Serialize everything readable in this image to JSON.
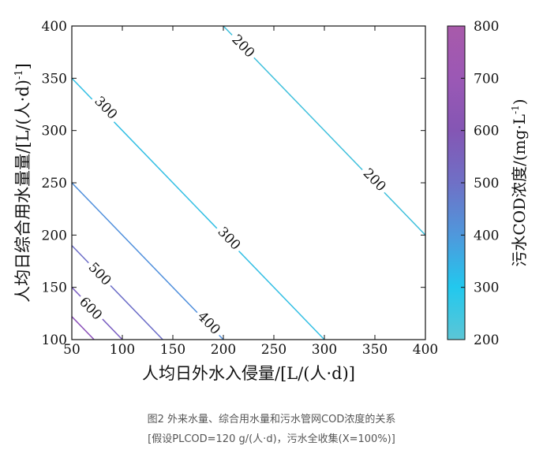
{
  "caption": {
    "line1": "图2 外来水量、综合用水量和污水管网COD浓度的关系",
    "line2": "[假设PLCOD=120 g/(人·d)，污水全收集(X=100%)]"
  },
  "chart_data": {
    "type": "contour",
    "title": "",
    "xlabel": "人均日外水入侵量/[L/(人·d)]",
    "ylabel": "人均日综合用水量量/[L/(人·d)",
    "ylabel_sup": "-1",
    "ylabel_tail": "]",
    "xlim": [
      50,
      400
    ],
    "ylim": [
      100,
      400
    ],
    "xticks": [
      50,
      100,
      150,
      200,
      250,
      300,
      350,
      400
    ],
    "yticks": [
      100,
      150,
      200,
      250,
      300,
      350,
      400
    ],
    "grid": false,
    "colorbar": {
      "label": "污水COD浓度/(mg·L",
      "label_sup": "-1",
      "label_tail": ")",
      "range": [
        200,
        800
      ],
      "ticks": [
        200,
        300,
        400,
        500,
        600,
        700,
        800
      ],
      "colors": [
        "#5cc6d6",
        "#22c8ee",
        "#4f98dc",
        "#6f70c6",
        "#8456b4",
        "#9b58b5",
        "#a85aaa"
      ]
    },
    "contours": [
      {
        "level": 200,
        "color": "#3fc0dc",
        "points": [
          [
            200,
            400
          ],
          [
            400,
            200
          ]
        ],
        "labels": [
          {
            "x": 220,
            "y": 381,
            "text": "200"
          },
          {
            "x": 350,
            "y": 253,
            "text": "200"
          }
        ]
      },
      {
        "level": 300,
        "color": "#33bfe4",
        "points": [
          [
            50,
            350
          ],
          [
            300,
            100
          ]
        ],
        "labels": [
          {
            "x": 84,
            "y": 322,
            "text": "300"
          },
          {
            "x": 206,
            "y": 197,
            "text": "300"
          }
        ]
      },
      {
        "level": 400,
        "color": "#4f8fdc",
        "points": [
          [
            50,
            250
          ],
          [
            200,
            100
          ]
        ],
        "labels": [
          {
            "x": 186,
            "y": 116,
            "text": "400"
          }
        ]
      },
      {
        "level": 500,
        "color": "#6a6bc7",
        "points": [
          [
            50,
            190
          ],
          [
            140,
            100
          ]
        ],
        "labels": [
          {
            "x": 78,
            "y": 163,
            "text": "500"
          }
        ]
      },
      {
        "level": 600,
        "color": "#7a5ec2",
        "points": [
          [
            50,
            150
          ],
          [
            100,
            100
          ]
        ],
        "labels": [
          {
            "x": 69,
            "y": 130,
            "text": "600"
          }
        ]
      },
      {
        "level": 700,
        "color": "#8a4fb8",
        "points": [
          [
            50,
            122
          ],
          [
            72,
            100
          ]
        ],
        "labels": []
      }
    ]
  }
}
